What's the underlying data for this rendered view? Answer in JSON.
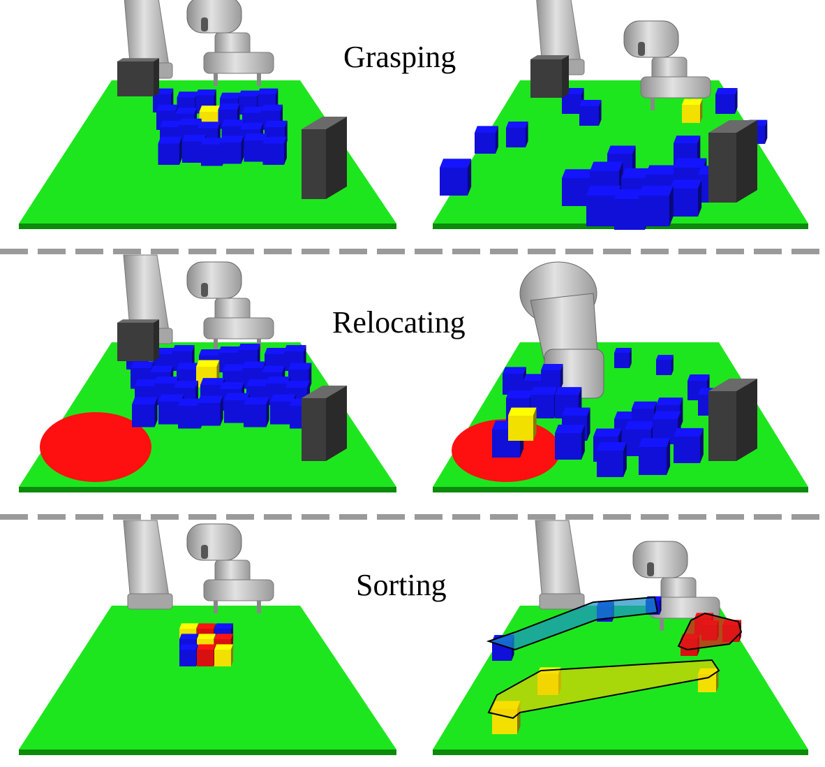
{
  "rows": [
    {
      "task": "Grasping"
    },
    {
      "task": "Relocating"
    },
    {
      "task": "Sorting"
    }
  ],
  "colors": {
    "table_top": "#1ee61e",
    "table_edge": "#0b8a0b",
    "block_blue": "#1010d8",
    "block_yellow": "#f2e000",
    "block_red": "#d81010",
    "target_zone": "#ff1010",
    "obstacle": "#3c3c3c",
    "robot_arm": "#b4b4b4",
    "separator": "#9a9a9a"
  },
  "icons": [
    "robot-arm-icon",
    "gripper-icon"
  ]
}
